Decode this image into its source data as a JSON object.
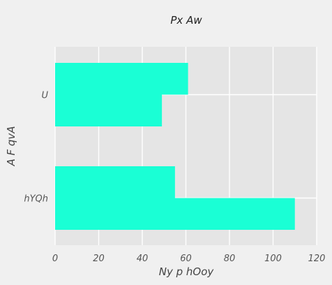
{
  "chart_data": {
    "type": "bar",
    "orientation": "horizontal",
    "title": "Px Aw",
    "xlabel": "Ny p hOoy",
    "ylabel": "A F qvA",
    "categories": [
      "U",
      "hYQh"
    ],
    "series": [
      {
        "values": [
          61,
          55
        ]
      },
      {
        "values": [
          49,
          110
        ]
      }
    ],
    "xlim": [
      0,
      120
    ],
    "xticks": [
      0,
      20,
      40,
      60,
      80,
      100,
      120
    ],
    "grid": true,
    "legend": "none",
    "colors": {
      "bar": "#1affd5",
      "plot_background": "#e5e5e5",
      "figure_background": "#f0f0f0",
      "grid": "#ffffff"
    }
  }
}
